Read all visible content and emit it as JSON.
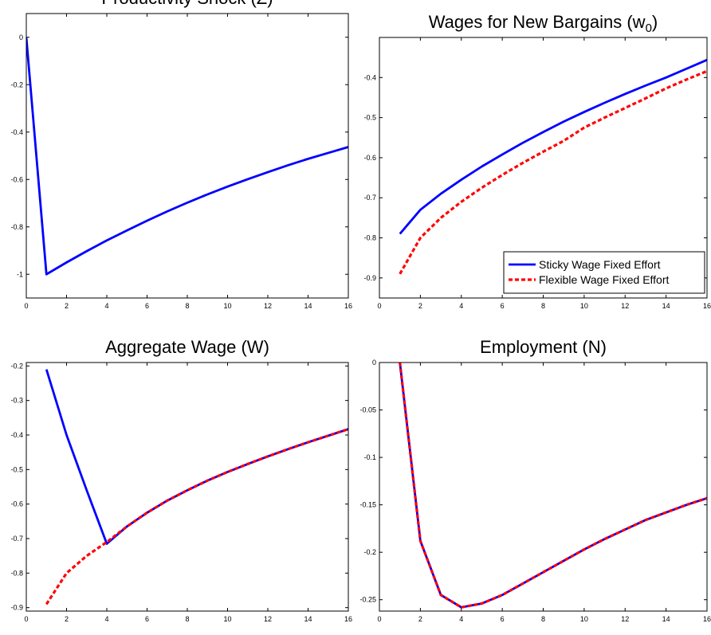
{
  "chart_data": [
    {
      "type": "line",
      "title": "Productivity Shock (Z)",
      "x": [
        0,
        1,
        2,
        3,
        4,
        5,
        6,
        7,
        8,
        9,
        10,
        11,
        12,
        13,
        14,
        15,
        16
      ],
      "series": [
        {
          "name": null,
          "color": "#0000ff",
          "dash": false,
          "values": [
            0,
            -1,
            -0.95,
            -0.9025,
            -0.857,
            -0.815,
            -0.774,
            -0.735,
            -0.698,
            -0.663,
            -0.63,
            -0.599,
            -0.569,
            -0.54,
            -0.513,
            -0.488,
            -0.463
          ]
        }
      ],
      "xlim": [
        0,
        16
      ],
      "xticks": [
        0,
        2,
        4,
        6,
        8,
        10,
        12,
        14,
        16
      ],
      "ylim": [
        -1.1,
        0.1
      ],
      "yticks": [
        -1,
        -0.8,
        -0.6,
        -0.4,
        -0.2,
        0
      ]
    },
    {
      "type": "line",
      "title": [
        "Wages for New Bargains (w",
        "0",
        ")"
      ],
      "x": [
        1,
        2,
        3,
        4,
        5,
        6,
        7,
        8,
        9,
        10,
        11,
        12,
        13,
        14,
        15,
        16
      ],
      "series": [
        {
          "name": "Sticky Wage Fixed Effort",
          "color": "#0000ff",
          "dash": false,
          "values": [
            -0.79,
            -0.73,
            -0.69,
            -0.655,
            -0.622,
            -0.592,
            -0.563,
            -0.536,
            -0.51,
            -0.486,
            -0.463,
            -0.441,
            -0.42,
            -0.4,
            -0.378,
            -0.356
          ]
        },
        {
          "name": "Flexible Wage Fixed Effort",
          "color": "#ff0000",
          "dash": true,
          "values": [
            -0.89,
            -0.8,
            -0.75,
            -0.71,
            -0.675,
            -0.643,
            -0.613,
            -0.585,
            -0.558,
            -0.525,
            -0.5,
            -0.476,
            -0.452,
            -0.427,
            -0.405,
            -0.384
          ]
        }
      ],
      "legend": "lower right",
      "xlim": [
        0,
        16
      ],
      "xticks": [
        0,
        2,
        4,
        6,
        8,
        10,
        12,
        14,
        16
      ],
      "ylim": [
        -0.95,
        -0.3
      ],
      "yticks": [
        -0.9,
        -0.8,
        -0.7,
        -0.6,
        -0.5,
        -0.4
      ]
    },
    {
      "type": "line",
      "title": "Aggregate Wage (W)",
      "x": [
        1,
        2,
        3,
        4,
        5,
        6,
        7,
        8,
        9,
        10,
        11,
        12,
        13,
        14,
        15,
        16
      ],
      "series": [
        {
          "name": null,
          "color": "#0000ff",
          "dash": false,
          "values": [
            -0.21,
            -0.4,
            -0.56,
            -0.715,
            -0.665,
            -0.625,
            -0.59,
            -0.56,
            -0.532,
            -0.507,
            -0.484,
            -0.462,
            -0.441,
            -0.421,
            -0.402,
            -0.383
          ]
        },
        {
          "name": null,
          "color": "#ff0000",
          "dash": true,
          "values": [
            -0.89,
            -0.8,
            -0.75,
            -0.71,
            -0.665,
            -0.625,
            -0.59,
            -0.56,
            -0.532,
            -0.507,
            -0.484,
            -0.462,
            -0.441,
            -0.421,
            -0.402,
            -0.383
          ]
        }
      ],
      "xlim": [
        0,
        16
      ],
      "xticks": [
        0,
        2,
        4,
        6,
        8,
        10,
        12,
        14,
        16
      ],
      "ylim": [
        -0.91,
        -0.19
      ],
      "yticks": [
        -0.9,
        -0.8,
        -0.7,
        -0.6,
        -0.5,
        -0.4,
        -0.3,
        -0.2
      ]
    },
    {
      "type": "line",
      "title": "Employment (N)",
      "x": [
        1,
        2,
        3,
        4,
        5,
        6,
        7,
        8,
        9,
        10,
        11,
        12,
        13,
        14,
        15,
        16
      ],
      "series": [
        {
          "name": null,
          "color": "#0000ff",
          "dash": false,
          "values": [
            0,
            -0.188,
            -0.245,
            -0.258,
            -0.254,
            -0.245,
            -0.233,
            -0.221,
            -0.209,
            -0.197,
            -0.186,
            -0.176,
            -0.166,
            -0.158,
            -0.15,
            -0.143
          ]
        },
        {
          "name": null,
          "color": "#ff0000",
          "dash": true,
          "values": [
            0,
            -0.188,
            -0.245,
            -0.258,
            -0.254,
            -0.245,
            -0.233,
            -0.221,
            -0.209,
            -0.197,
            -0.186,
            -0.176,
            -0.166,
            -0.158,
            -0.15,
            -0.143
          ]
        }
      ],
      "xlim": [
        0,
        16
      ],
      "xticks": [
        0,
        2,
        4,
        6,
        8,
        10,
        12,
        14,
        16
      ],
      "ylim": [
        -0.262,
        0
      ],
      "yticks": [
        -0.25,
        -0.2,
        -0.15,
        -0.1,
        -0.05,
        0
      ]
    }
  ]
}
